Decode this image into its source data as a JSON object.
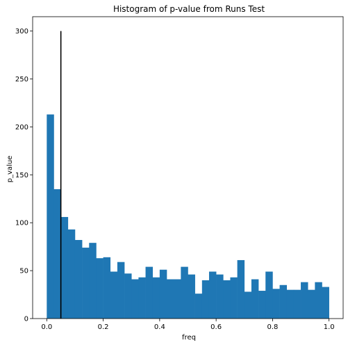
{
  "chart_data": {
    "type": "bar",
    "title": "Histogram of p-value from Runs Test",
    "xlabel": "freq",
    "ylabel": "p_value",
    "xlim": [
      -0.05,
      1.05
    ],
    "ylim": [
      0,
      315
    ],
    "xticks": [
      0.0,
      0.2,
      0.4,
      0.6,
      0.8,
      1.0
    ],
    "xtick_labels": [
      "0.0",
      "0.2",
      "0.4",
      "0.6",
      "0.8",
      "1.0"
    ],
    "yticks": [
      0,
      50,
      100,
      150,
      200,
      250,
      300
    ],
    "ytick_labels": [
      "0",
      "50",
      "100",
      "150",
      "200",
      "250",
      "300"
    ],
    "bin_start": 0.0,
    "bin_width": 0.025,
    "values": [
      213,
      135,
      106,
      93,
      82,
      74,
      79,
      63,
      64,
      49,
      59,
      47,
      41,
      43,
      54,
      43,
      51,
      41,
      41,
      54,
      46,
      26,
      40,
      49,
      46,
      40,
      43,
      61,
      28,
      41,
      29,
      49,
      31,
      35,
      30,
      30,
      38,
      30,
      38,
      33
    ],
    "bar_color": "#1f77b4",
    "vline": {
      "x": 0.05,
      "y_top": 300,
      "color": "#000000"
    },
    "grid": false,
    "legend": "none"
  }
}
